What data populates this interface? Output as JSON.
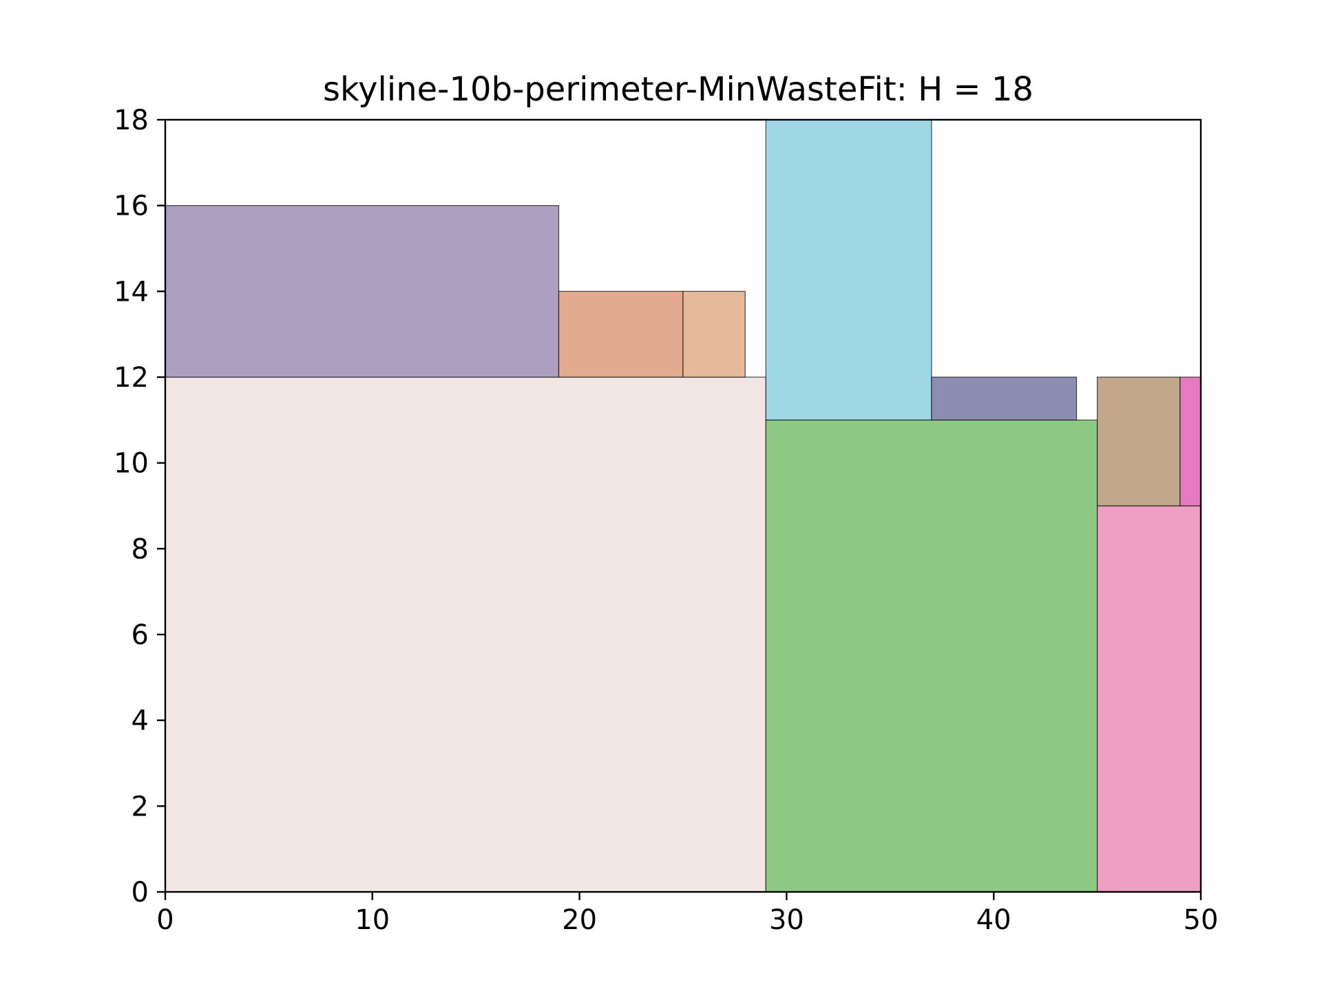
{
  "chart_data": {
    "type": "rectangles",
    "title": "skyline-10b-perimeter-MinWasteFit: H = 18",
    "xlim": [
      0,
      50
    ],
    "ylim": [
      0,
      18
    ],
    "xticks": [
      0,
      10,
      20,
      30,
      40,
      50
    ],
    "yticks": [
      0,
      2,
      4,
      6,
      8,
      10,
      12,
      14,
      16,
      18
    ],
    "grid": false,
    "rectangles": [
      {
        "x": 0,
        "y": 0,
        "w": 29,
        "h": 12,
        "color": "#f2e6e4"
      },
      {
        "x": 0,
        "y": 12,
        "w": 19,
        "h": 4,
        "color": "#ad9fc0"
      },
      {
        "x": 19,
        "y": 12,
        "w": 6,
        "h": 2,
        "color": "#e2aa8e"
      },
      {
        "x": 25,
        "y": 12,
        "w": 3,
        "h": 2,
        "color": "#e5b99a"
      },
      {
        "x": 29,
        "y": 0,
        "w": 16,
        "h": 11,
        "color": "#8dc985"
      },
      {
        "x": 29,
        "y": 11,
        "w": 8,
        "h": 7,
        "color": "#a0d7e4"
      },
      {
        "x": 37,
        "y": 11,
        "w": 7,
        "h": 1,
        "color": "#8b8db3"
      },
      {
        "x": 45,
        "y": 0,
        "w": 5,
        "h": 9,
        "color": "#ef9ec5"
      },
      {
        "x": 45,
        "y": 9,
        "w": 4,
        "h": 3,
        "color": "#c3a78b"
      },
      {
        "x": 49,
        "y": 9,
        "w": 1,
        "h": 3,
        "color": "#e67ac3"
      }
    ]
  }
}
